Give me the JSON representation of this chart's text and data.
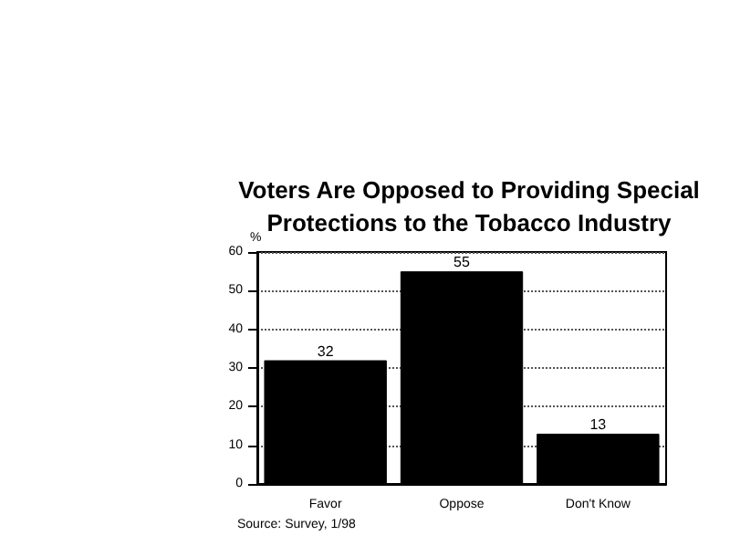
{
  "chart_data": {
    "type": "bar",
    "title": "Voters Are Opposed to Providing Special\nProtections to the Tobacco Industry",
    "ylabel": "%",
    "categories": [
      "Favor",
      "Oppose",
      "Don't Know"
    ],
    "values": [
      32,
      55,
      13
    ],
    "color": "#000000",
    "ylim": [
      0,
      60
    ],
    "yticks": [
      0,
      10,
      20,
      30,
      40,
      50,
      60
    ],
    "grid": "y",
    "data_labels": true,
    "legend": false,
    "annotations": [
      "Source: Survey, 1/98"
    ]
  }
}
